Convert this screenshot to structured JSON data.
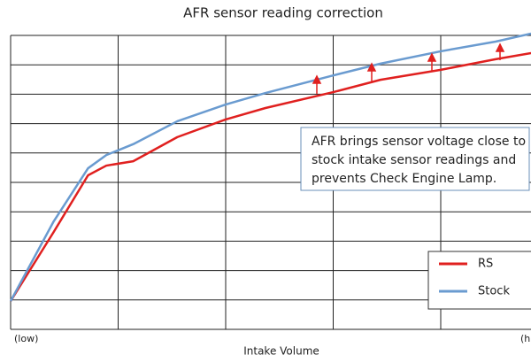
{
  "chart_data": {
    "type": "line",
    "title": "AFR sensor reading correction",
    "x_label": "Intake Volume",
    "x_end_labels": [
      "(low)",
      "(h"
    ],
    "x": [
      0,
      0.4,
      0.72,
      0.89,
      1.14,
      1.55,
      2,
      2.37,
      3,
      3.44,
      4,
      4.51,
      4.84
    ],
    "series": [
      {
        "name": "RS",
        "color": "#e0201f",
        "values": [
          0.96,
          3.31,
          5.24,
          5.57,
          5.72,
          6.54,
          7.14,
          7.53,
          8.07,
          8.49,
          8.83,
          9.19,
          9.4
        ]
      },
      {
        "name": "Stock",
        "color": "#6a9bd0",
        "values": [
          0.96,
          3.67,
          5.48,
          5.93,
          6.3,
          7.08,
          7.65,
          8.04,
          8.64,
          9.04,
          9.46,
          9.79,
          10.06
        ]
      }
    ],
    "xlim": [
      0,
      5
    ],
    "ylim": [
      0,
      10
    ],
    "xticks": [
      0,
      1,
      2,
      3,
      4,
      5
    ],
    "yticks": [
      0,
      1,
      2,
      3,
      4,
      5,
      6,
      7,
      8,
      9,
      10
    ],
    "grid": true,
    "annotation": [
      "AFR brings sensor voltage close to",
      "stock intake sensor readings and",
      "prevents Check Engine Lamp."
    ]
  }
}
